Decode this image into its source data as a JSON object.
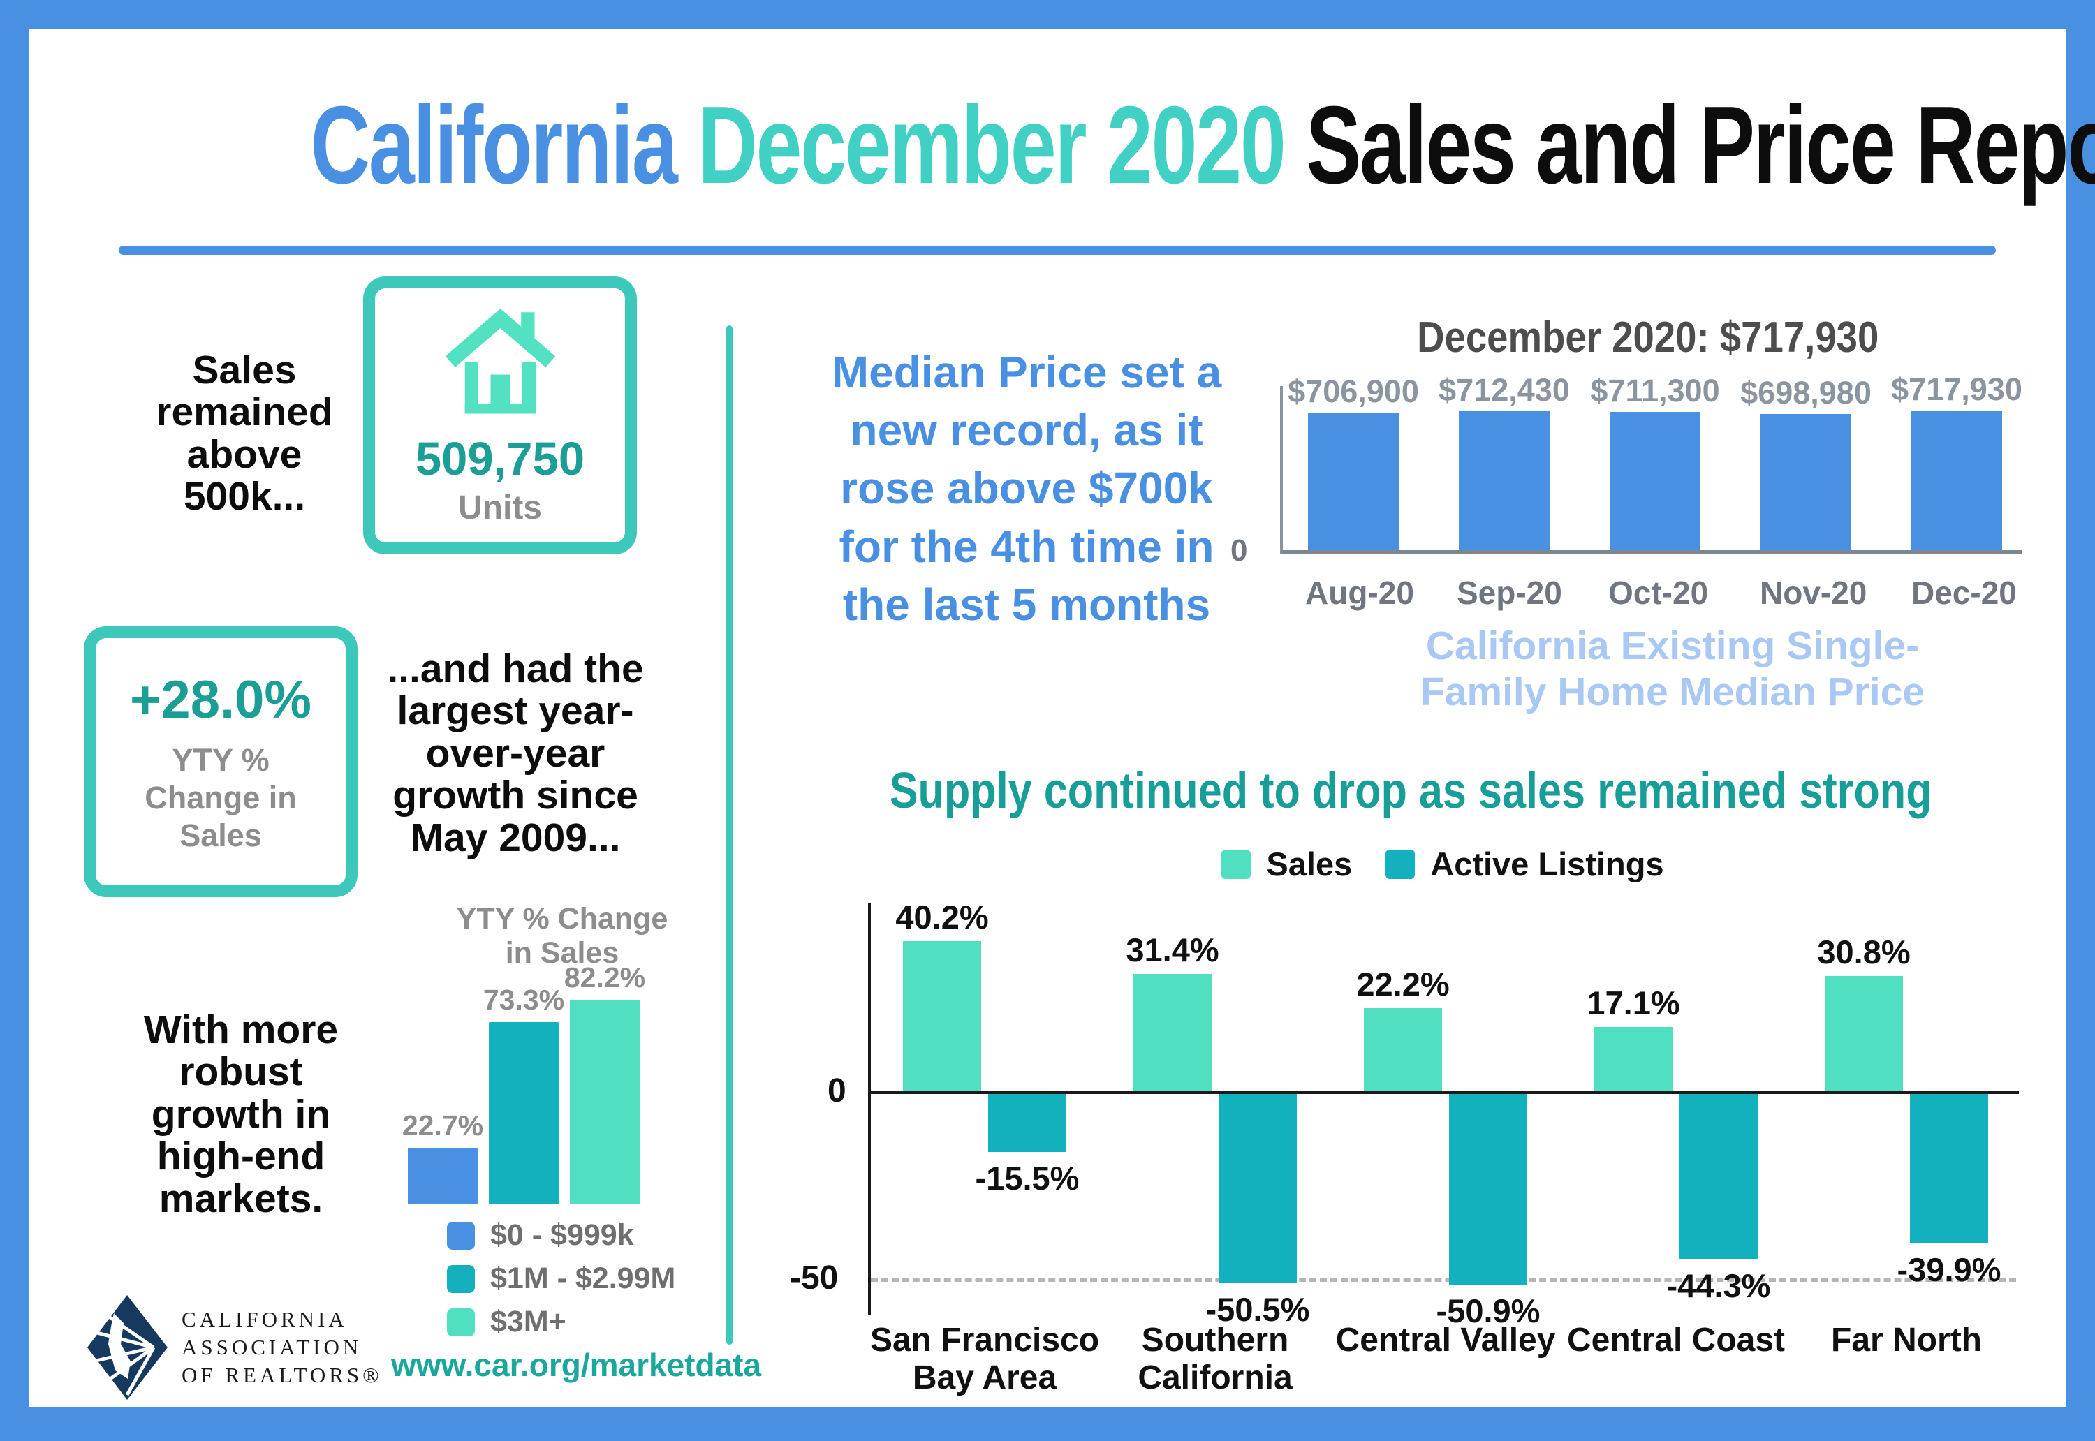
{
  "title": {
    "part1": "California ",
    "part2": "December 2020 ",
    "part3": "Sales and Price Report",
    "accent_blue": "#4a90e2",
    "accent_teal": "#41d0c4"
  },
  "left": {
    "sales_note": "Sales remained above 500k...",
    "units_value": "509,750",
    "units_label": "Units",
    "change_value": "+28.0%",
    "change_label": "YTY % Change in Sales",
    "growth_note": "...and had the largest year-over-year growth since May 2009...",
    "robust_note": "With more robust growth in high-end markets.",
    "logo_lines": [
      "CALIFORNIA",
      "ASSOCIATION",
      "OF REALTORS®"
    ],
    "website": "www.car.org/marketdata"
  },
  "median_section": {
    "headline": "Median Price set a new record, as it rose above $700k for the 4th time in the last 5 months",
    "caption": "California Existing Single-Family Home Median Price"
  },
  "supply_section": {
    "title": "Supply continued to drop as sales remained strong"
  },
  "chart_data": [
    {
      "type": "bar",
      "title": "YTY % Change in Sales",
      "categories": [
        "$0 - $999k",
        "$1M - $2.99M",
        "$3M+"
      ],
      "values": [
        22.7,
        73.3,
        82.2
      ],
      "labels": [
        "22.7%",
        "73.3%",
        "82.2%"
      ],
      "colors": [
        "#4a90e2",
        "#12b1bd",
        "#50e0c1"
      ],
      "legend_position": "bottom",
      "ylim": [
        0,
        90
      ]
    },
    {
      "type": "bar",
      "title": "December 2020: $717,930",
      "categories": [
        "Aug-20",
        "Sep-20",
        "Oct-20",
        "Nov-20",
        "Dec-20"
      ],
      "values": [
        706900,
        712430,
        711300,
        698980,
        717930
      ],
      "labels": [
        "$706,900",
        "$712,430",
        "$711,300",
        "$698,980",
        "$717,930"
      ],
      "bar_color": "#4a90e2",
      "y_zero_label": "0",
      "ylim": [
        0,
        860000
      ]
    },
    {
      "type": "bar",
      "title": "Supply continued to drop as sales remained strong",
      "categories": [
        "San Francisco\nBay Area",
        "Southern\nCalifornia",
        "Central Valley",
        "Central Coast",
        "Far North"
      ],
      "series": [
        {
          "name": "Sales",
          "color": "#50e0c1",
          "values": [
            40.2,
            31.4,
            22.2,
            17.1,
            30.8
          ],
          "labels": [
            "40.2%",
            "31.4%",
            "22.2%",
            "17.1%",
            "30.8%"
          ]
        },
        {
          "name": "Active Listings",
          "color": "#12b1bd",
          "values": [
            -15.5,
            -50.5,
            -50.9,
            -44.3,
            -39.9
          ],
          "labels": [
            "-15.5%",
            "-50.5%",
            "-50.9%",
            "-44.3%",
            "-39.9%"
          ]
        }
      ],
      "y_labels": [
        "0",
        "-50"
      ],
      "gridline_at": -50,
      "ylim": [
        -60,
        50
      ]
    }
  ]
}
